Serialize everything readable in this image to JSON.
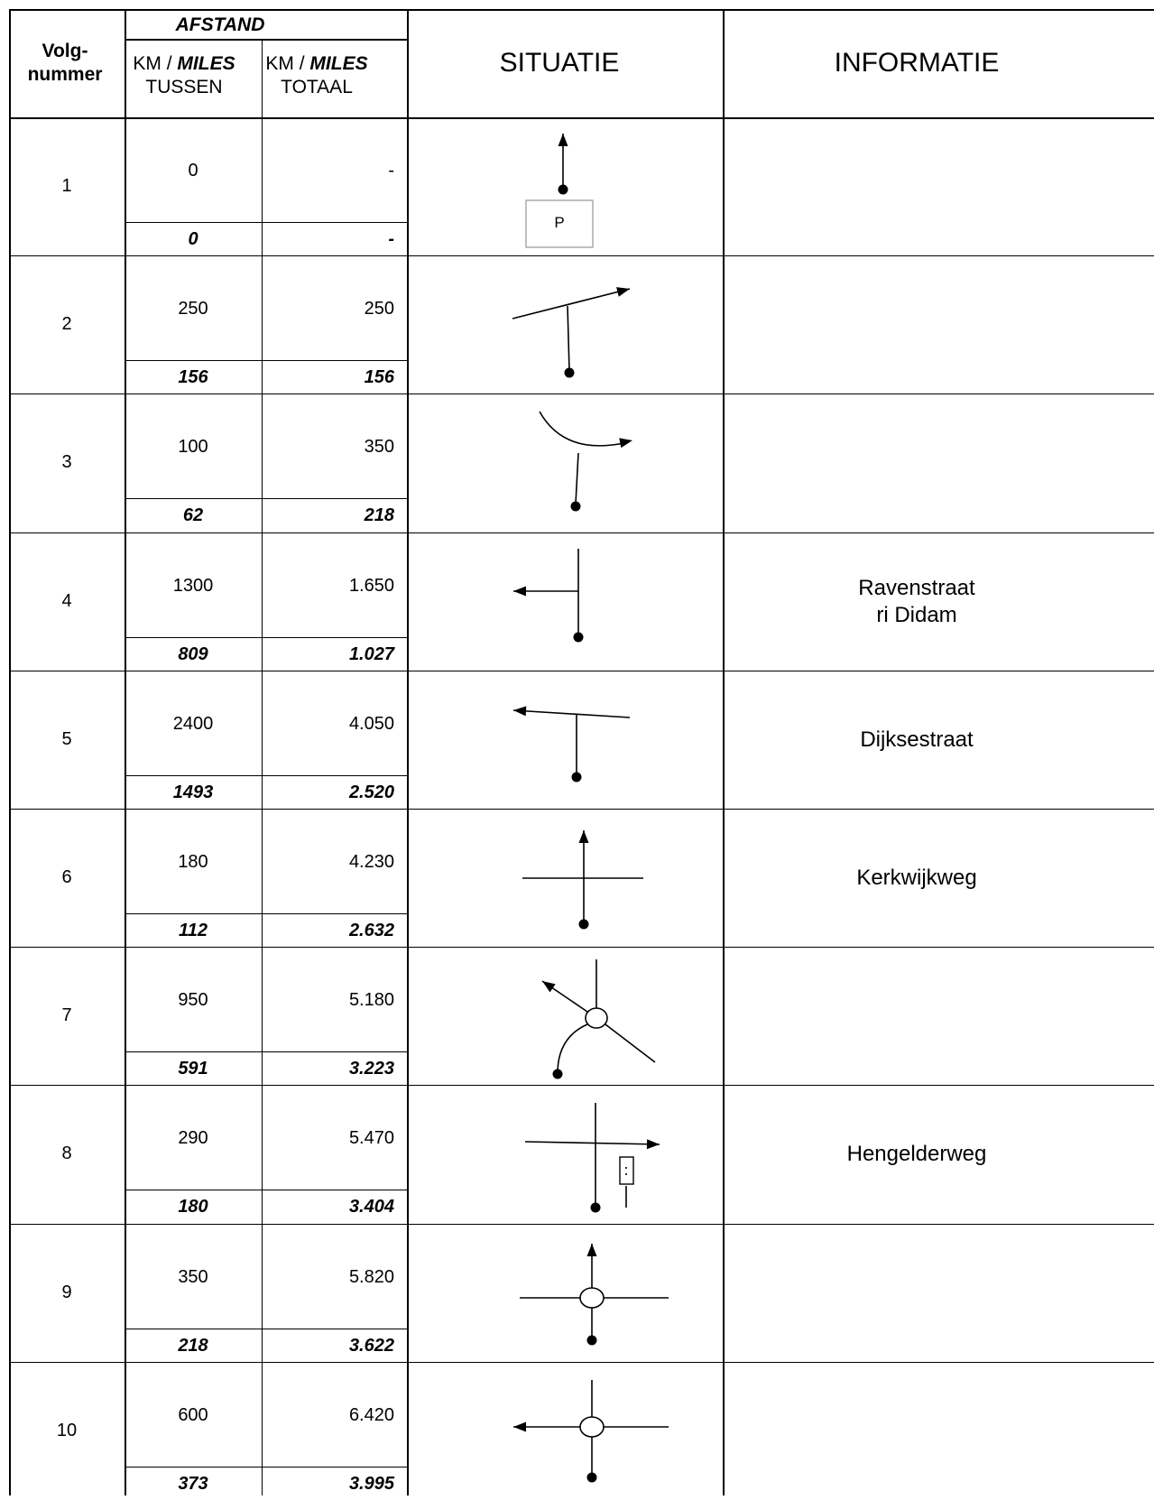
{
  "header": {
    "volg": "Volg-",
    "nummer": "nummer",
    "afstand": "AFSTAND",
    "km": "KM / ",
    "miles": "MILES",
    "tussen": "TUSSEN",
    "totaal": "TOTAAL",
    "situatie": "SITUATIE",
    "informatie": "INFORMATIE"
  },
  "rows": [
    {
      "nr": "1",
      "km_tussen": "0",
      "km_totaal": "-",
      "mi_tussen": "0",
      "mi_totaal": "-",
      "info": "",
      "icon": "start-parking-arrow-up-icon",
      "parking": "P"
    },
    {
      "nr": "2",
      "km_tussen": "250",
      "km_totaal": "250",
      "mi_tussen": "156",
      "mi_totaal": "156",
      "info": "",
      "icon": "t-junction-right-icon"
    },
    {
      "nr": "3",
      "km_tussen": "100",
      "km_totaal": "350",
      "mi_tussen": "62",
      "mi_totaal": "218",
      "info": "",
      "icon": "curve-right-icon"
    },
    {
      "nr": "4",
      "km_tussen": "1300",
      "km_totaal": "1.650",
      "mi_tussen": "809",
      "mi_totaal": "1.027",
      "info": "Ravenstraat\nri Didam",
      "icon": "left-turn-icon"
    },
    {
      "nr": "5",
      "km_tussen": "2400",
      "km_totaal": "4.050",
      "mi_tussen": "1493",
      "mi_totaal": "2.520",
      "info": "Dijksestraat",
      "icon": "t-junction-left-icon"
    },
    {
      "nr": "6",
      "km_tussen": "180",
      "km_totaal": "4.230",
      "mi_tussen": "112",
      "mi_totaal": "2.632",
      "info": "Kerkwijkweg",
      "icon": "crossroad-straight-icon"
    },
    {
      "nr": "7",
      "km_tussen": "950",
      "km_totaal": "5.180",
      "mi_tussen": "591",
      "mi_totaal": "3.223",
      "info": "",
      "icon": "roundabout-left-icon"
    },
    {
      "nr": "8",
      "km_tussen": "290",
      "km_totaal": "5.470",
      "mi_tussen": "180",
      "mi_totaal": "3.404",
      "info": "Hengelderweg",
      "icon": "crossroad-right-traffic-light-icon"
    },
    {
      "nr": "9",
      "km_tussen": "350",
      "km_totaal": "5.820",
      "mi_tussen": "218",
      "mi_totaal": "3.622",
      "info": "",
      "icon": "roundabout-straight-icon"
    },
    {
      "nr": "10",
      "km_tussen": "600",
      "km_totaal": "6.420",
      "mi_tussen": "373",
      "mi_totaal": "3.995",
      "info": "",
      "icon": "roundabout-left-exit-icon"
    }
  ]
}
